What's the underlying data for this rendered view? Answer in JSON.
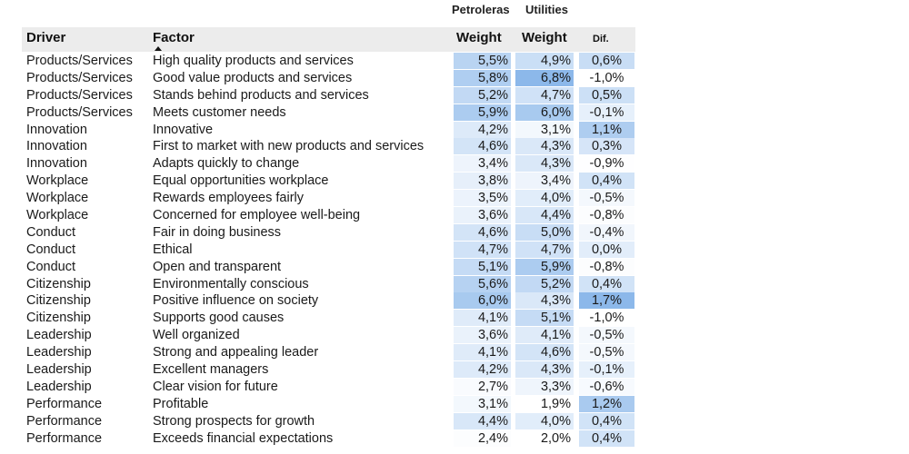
{
  "table": {
    "group_headers": {
      "petroleras": "Petroleras",
      "utilities": "Utilities"
    },
    "columns": {
      "driver": "Driver",
      "factor": "Factor",
      "petro_weight": "Weight",
      "util_weight": "Weight",
      "dif": "Dif."
    },
    "sort": {
      "column": "factor",
      "direction": "ascending-arrow"
    },
    "colors": {
      "header_band": "#ececec",
      "heat_low": "#ffffff",
      "heat_high": "#7fb0e8"
    },
    "rows": [
      {
        "driver": "Products/Services",
        "factor": "High quality products and services",
        "petro": "5,5%",
        "util": "4,9%",
        "dif": "0,6%"
      },
      {
        "driver": "Products/Services",
        "factor": "Good value products and services",
        "petro": "5,8%",
        "util": "6,8%",
        "dif": "-1,0%"
      },
      {
        "driver": "Products/Services",
        "factor": "Stands behind products and services",
        "petro": "5,2%",
        "util": "4,7%",
        "dif": "0,5%"
      },
      {
        "driver": "Products/Services",
        "factor": "Meets customer needs",
        "petro": "5,9%",
        "util": "6,0%",
        "dif": "-0,1%"
      },
      {
        "driver": "Innovation",
        "factor": "Innovative",
        "petro": "4,2%",
        "util": "3,1%",
        "dif": "1,1%"
      },
      {
        "driver": "Innovation",
        "factor": "First to market with new products and services",
        "petro": "4,6%",
        "util": "4,3%",
        "dif": "0,3%"
      },
      {
        "driver": "Innovation",
        "factor": "Adapts quickly to change",
        "petro": "3,4%",
        "util": "4,3%",
        "dif": "-0,9%"
      },
      {
        "driver": "Workplace",
        "factor": "Equal opportunities workplace",
        "petro": "3,8%",
        "util": "3,4%",
        "dif": "0,4%"
      },
      {
        "driver": "Workplace",
        "factor": "Rewards employees fairly",
        "petro": "3,5%",
        "util": "4,0%",
        "dif": "-0,5%"
      },
      {
        "driver": "Workplace",
        "factor": "Concerned for employee well-being",
        "petro": "3,6%",
        "util": "4,4%",
        "dif": "-0,8%"
      },
      {
        "driver": "Conduct",
        "factor": "Fair in doing business",
        "petro": "4,6%",
        "util": "5,0%",
        "dif": "-0,4%"
      },
      {
        "driver": "Conduct",
        "factor": "Ethical",
        "petro": "4,7%",
        "util": "4,7%",
        "dif": "0,0%"
      },
      {
        "driver": "Conduct",
        "factor": "Open and transparent",
        "petro": "5,1%",
        "util": "5,9%",
        "dif": "-0,8%"
      },
      {
        "driver": "Citizenship",
        "factor": "Environmentally conscious",
        "petro": "5,6%",
        "util": "5,2%",
        "dif": "0,4%"
      },
      {
        "driver": "Citizenship",
        "factor": "Positive influence on society",
        "petro": "6,0%",
        "util": "4,3%",
        "dif": "1,7%"
      },
      {
        "driver": "Citizenship",
        "factor": "Supports good causes",
        "petro": "4,1%",
        "util": "5,1%",
        "dif": "-1,0%"
      },
      {
        "driver": "Leadership",
        "factor": "Well organized",
        "petro": "3,6%",
        "util": "4,1%",
        "dif": "-0,5%"
      },
      {
        "driver": "Leadership",
        "factor": "Strong and appealing leader",
        "petro": "4,1%",
        "util": "4,6%",
        "dif": "-0,5%"
      },
      {
        "driver": "Leadership",
        "factor": "Excellent managers",
        "petro": "4,2%",
        "util": "4,3%",
        "dif": "-0,1%"
      },
      {
        "driver": "Leadership",
        "factor": "Clear vision for future",
        "petro": "2,7%",
        "util": "3,3%",
        "dif": "-0,6%"
      },
      {
        "driver": "Performance",
        "factor": "Profitable",
        "petro": "3,1%",
        "util": "1,9%",
        "dif": "1,2%"
      },
      {
        "driver": "Performance",
        "factor": "Strong prospects for growth",
        "petro": "4,4%",
        "util": "4,0%",
        "dif": "0,4%"
      },
      {
        "driver": "Performance",
        "factor": "Exceeds financial expectations",
        "petro": "2,4%",
        "util": "2,0%",
        "dif": "0,4%"
      }
    ]
  },
  "chart_data": {
    "type": "table",
    "columns": [
      "Driver",
      "Factor",
      "Petroleras Weight",
      "Utilities Weight",
      "Dif."
    ],
    "series": [
      {
        "name": "Petroleras",
        "values": [
          5.5,
          5.8,
          5.2,
          5.9,
          4.2,
          4.6,
          3.4,
          3.8,
          3.5,
          3.6,
          4.6,
          4.7,
          5.1,
          5.6,
          6.0,
          4.1,
          3.6,
          4.1,
          4.2,
          2.7,
          3.1,
          4.4,
          2.4
        ]
      },
      {
        "name": "Utilities",
        "values": [
          4.9,
          6.8,
          4.7,
          6.0,
          3.1,
          4.3,
          4.3,
          3.4,
          4.0,
          4.4,
          5.0,
          4.7,
          5.9,
          5.2,
          4.3,
          5.1,
          4.1,
          4.6,
          4.3,
          3.3,
          1.9,
          4.0,
          2.0
        ]
      },
      {
        "name": "Dif.",
        "values": [
          0.6,
          -1.0,
          0.5,
          -0.1,
          1.1,
          0.3,
          -0.9,
          0.4,
          -0.5,
          -0.8,
          -0.4,
          0.0,
          -0.8,
          0.4,
          1.7,
          -1.0,
          -0.5,
          -0.5,
          -0.1,
          -0.6,
          1.2,
          0.4,
          0.4
        ]
      }
    ]
  }
}
